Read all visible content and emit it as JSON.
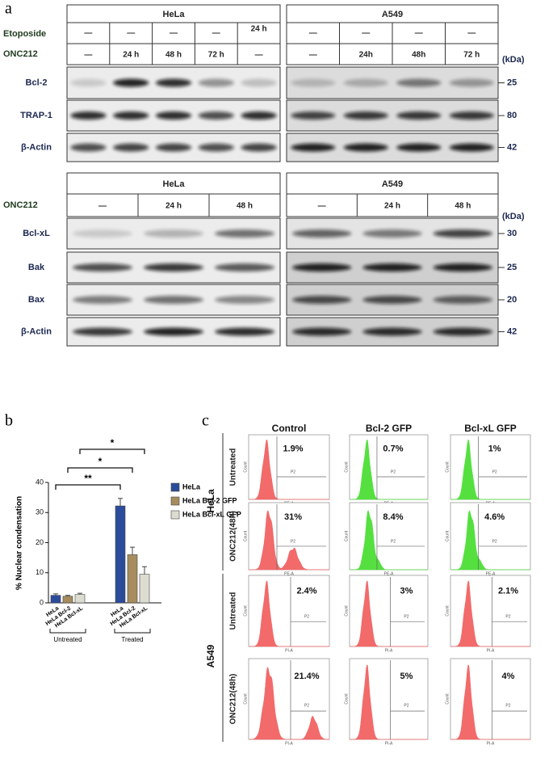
{
  "panel_a": {
    "label": "a",
    "unit": "(kDa)",
    "top": {
      "cell_lines": [
        "HeLa",
        "A549"
      ],
      "treatments": [
        "Etoposide",
        "ONC212"
      ],
      "hela": {
        "etoposide": [
          "—",
          "—",
          "—",
          "—",
          "24 h"
        ],
        "onc212": [
          "—",
          "24 h",
          "48 h",
          "72 h",
          "—"
        ]
      },
      "a549": {
        "etoposide": [
          "—",
          "—",
          "—",
          "—"
        ],
        "onc212": [
          "—",
          "24h",
          "48h",
          "72 h"
        ]
      },
      "proteins": [
        "Bcl-2",
        "TRAP-1",
        "β-Actin"
      ],
      "sizes": [
        "25",
        "80",
        "42"
      ]
    },
    "bottom": {
      "cell_lines": [
        "HeLa",
        "A549"
      ],
      "treatment": "ONC212",
      "hela": [
        "—",
        "24 h",
        "48 h"
      ],
      "a549": [
        "—",
        "24 h",
        "48 h"
      ],
      "proteins": [
        "Bcl-xL",
        "Bak",
        "Bax",
        "β-Actin"
      ],
      "sizes": [
        "30",
        "25",
        "20",
        "42"
      ]
    }
  },
  "chart_data": {
    "type": "bar",
    "panel_label": "b",
    "ylabel": "% Nuclear condensation",
    "categories": [
      "Untreated",
      "Treated"
    ],
    "bar_labels": [
      "HeLa",
      "HeLa Bcl-2",
      "HeLa Bcl-xL"
    ],
    "series": [
      {
        "name": "HeLa",
        "color": "#2b4c9b",
        "values": [
          2.5,
          32.2
        ],
        "errors": [
          0.5,
          2.5
        ]
      },
      {
        "name": "HeLa Bcl-2 GFP",
        "color": "#a78c5e",
        "values": [
          2.2,
          16
        ],
        "errors": [
          0.3,
          2.5
        ]
      },
      {
        "name": "HeLa Bcl-xL GFP",
        "color": "#dcdcd0",
        "values": [
          2.8,
          9.5
        ],
        "errors": [
          0.4,
          2.5
        ]
      }
    ],
    "significance": [
      "**",
      "*",
      "*"
    ],
    "ylim": [
      0,
      40
    ],
    "yticks": [
      0,
      10,
      20,
      30,
      40
    ]
  },
  "panel_c": {
    "label": "c",
    "columns": [
      "Control",
      "Bcl-2 GFP",
      "Bcl-xL GFP"
    ],
    "cell_lines": [
      "HeLa",
      "A549"
    ],
    "rows": [
      "Untreated",
      "ONC212(48h)"
    ],
    "hela_axis": "PE-A",
    "a549_axis": "PI-A",
    "count_label": "Count",
    "gate": "P2",
    "percentages": [
      [
        "1.9%",
        "0.7%",
        "1%"
      ],
      [
        "31%",
        "8.4%",
        "4.6%"
      ],
      [
        "2.4%",
        "3%",
        "2.1%"
      ],
      [
        "21.4%",
        "5%",
        "4%"
      ]
    ]
  }
}
